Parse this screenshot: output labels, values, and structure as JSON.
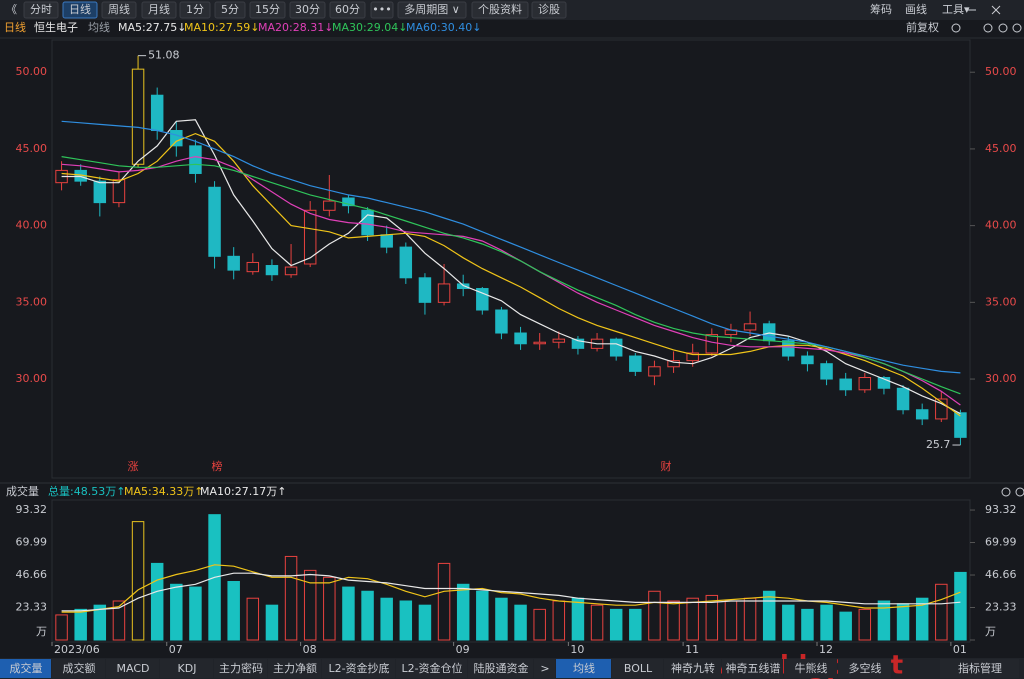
{
  "toolbar": {
    "back": "《",
    "periods": [
      "分时",
      "日线",
      "周线",
      "月线",
      "1分",
      "5分",
      "15分",
      "30分",
      "60分",
      "•••",
      "多周期图 ∨",
      "个股资料",
      "诊股"
    ],
    "tools": [
      "筹码",
      "画线",
      "工具▾"
    ]
  },
  "info": {
    "period": "日线",
    "stock": "恒生电子",
    "indicator": "均线",
    "adjust": "前复权"
  },
  "markers": [
    "涨",
    "榜",
    "财"
  ],
  "watermark": "www.ddgp.net",
  "tabs": [
    "成交量",
    "成交额",
    "MACD",
    "KDJ",
    "主力密码",
    "主力净额",
    "L2-资金抄底",
    "L2-资金仓位",
    "陆股通资金",
    ">",
    "均线",
    "BOLL",
    "神奇九转",
    "神奇五线谱",
    "牛熊线",
    "多空线",
    "指标管理"
  ],
  "chart_data": [
    {
      "type": "candlestick",
      "ylim": [
        23.55,
        52.1
      ],
      "yticks": [
        {
          "value": 30,
          "label": "30.00"
        },
        {
          "value": 35,
          "label": "35.00"
        },
        {
          "value": 40,
          "label": "40.00"
        },
        {
          "value": 45,
          "label": "45.00"
        },
        {
          "value": 50,
          "label": "50.00"
        }
      ],
      "up_color": "#e8423f",
      "down_color": "#1fb8c3",
      "limit_color": "#e8c21f",
      "open": [
        42.8,
        43.6,
        42.9,
        41.5,
        44.0,
        48.5,
        46.2,
        45.2,
        42.5,
        38.0,
        37.0,
        37.4,
        36.8,
        37.5,
        41.0,
        41.8,
        41.0,
        39.4,
        38.6,
        36.6,
        35.0,
        36.2,
        35.9,
        34.5,
        33.0,
        32.3,
        32.4,
        32.6,
        32.0,
        32.6,
        31.5,
        30.2,
        30.8,
        31.2,
        31.7,
        32.9,
        33.2,
        33.6,
        32.5,
        31.5,
        31.0,
        30.0,
        29.3,
        30.1,
        29.4,
        28.0,
        27.4,
        27.8
      ],
      "high": [
        44.2,
        44.0,
        43.2,
        43.5,
        51.08,
        49.0,
        46.8,
        45.6,
        42.9,
        38.6,
        38.2,
        37.8,
        38.8,
        41.6,
        43.3,
        42.0,
        41.2,
        40.0,
        38.9,
        36.9,
        37.5,
        36.8,
        36.0,
        34.7,
        33.4,
        33.0,
        33.1,
        32.8,
        33.0,
        32.7,
        31.7,
        31.2,
        31.8,
        32.3,
        33.3,
        33.6,
        34.4,
        33.8,
        32.8,
        31.8,
        31.2,
        30.4,
        30.4,
        30.2,
        29.6,
        28.4,
        29.2,
        28.0
      ],
      "low": [
        42.3,
        42.6,
        40.6,
        41.2,
        43.8,
        45.6,
        44.5,
        42.8,
        37.2,
        36.5,
        36.8,
        36.4,
        36.6,
        37.3,
        40.6,
        40.8,
        39.0,
        38.2,
        36.2,
        34.2,
        34.8,
        35.4,
        34.2,
        32.6,
        31.9,
        31.9,
        32.0,
        31.6,
        31.8,
        31.2,
        30.2,
        29.6,
        30.4,
        30.8,
        31.5,
        32.4,
        32.8,
        32.2,
        31.2,
        30.5,
        29.6,
        28.9,
        29.1,
        29.0,
        27.7,
        27.0,
        27.2,
        25.7
      ],
      "close": [
        43.6,
        42.9,
        41.5,
        43.0,
        50.2,
        46.2,
        45.2,
        43.4,
        38.0,
        37.1,
        37.6,
        36.8,
        37.3,
        41.0,
        41.6,
        41.3,
        39.4,
        38.6,
        36.6,
        35.0,
        36.2,
        35.9,
        34.5,
        33.0,
        32.3,
        32.4,
        32.6,
        32.0,
        32.6,
        31.5,
        30.5,
        30.8,
        31.2,
        31.7,
        32.9,
        33.2,
        33.6,
        32.5,
        31.5,
        31.0,
        30.0,
        29.3,
        30.1,
        29.4,
        28.0,
        27.4,
        28.7,
        26.2
      ],
      "series": [
        {
          "name": "MA5:27.75↓",
          "color": "#e8e8e8",
          "values": [
            43.2,
            43.2,
            42.8,
            42.8,
            44.2,
            45.2,
            46.8,
            46.9,
            44.6,
            42.0,
            40.3,
            38.5,
            37.4,
            37.9,
            38.8,
            39.5,
            40.7,
            40.5,
            39.5,
            38.2,
            37.2,
            36.1,
            35.6,
            35.1,
            34.2,
            33.6,
            33.0,
            32.5,
            32.3,
            32.3,
            31.8,
            31.5,
            31.1,
            31.0,
            31.4,
            32.0,
            32.7,
            33.0,
            32.8,
            32.4,
            31.8,
            31.0,
            30.5,
            30.0,
            29.5,
            28.9,
            28.4,
            27.75
          ]
        },
        {
          "name": "MA10:27.59↓",
          "color": "#f0c419",
          "values": [
            43.4,
            43.3,
            43.1,
            42.9,
            43.4,
            44.2,
            45.5,
            46.0,
            45.5,
            44.2,
            42.6,
            41.3,
            40.0,
            39.8,
            39.6,
            39.2,
            39.3,
            39.4,
            39.5,
            39.3,
            38.7,
            37.9,
            37.2,
            36.6,
            36.0,
            35.3,
            34.6,
            34.0,
            33.5,
            33.1,
            32.7,
            32.3,
            31.9,
            31.6,
            31.6,
            31.6,
            31.8,
            32.1,
            32.2,
            32.2,
            32.0,
            31.6,
            31.2,
            30.7,
            30.2,
            29.4,
            28.5,
            27.59
          ]
        },
        {
          "name": "MA20:28.31↓",
          "color": "#e040b8",
          "values": [
            44.0,
            43.9,
            43.7,
            43.5,
            43.6,
            43.8,
            44.2,
            44.5,
            44.3,
            43.8,
            43.0,
            42.2,
            41.4,
            40.8,
            40.4,
            40.2,
            40.1,
            39.9,
            39.6,
            39.5,
            39.4,
            39.3,
            39.0,
            38.4,
            37.7,
            37.0,
            36.3,
            35.6,
            35.0,
            34.5,
            34.0,
            33.5,
            33.1,
            32.7,
            32.4,
            32.2,
            32.1,
            32.1,
            32.1,
            32.0,
            31.9,
            31.7,
            31.4,
            31.0,
            30.5,
            29.9,
            29.2,
            28.31
          ]
        },
        {
          "name": "MA30:29.04↓",
          "color": "#2fc45a",
          "values": [
            44.5,
            44.3,
            44.1,
            43.9,
            43.8,
            43.8,
            43.9,
            44.0,
            43.9,
            43.6,
            43.2,
            42.8,
            42.4,
            42.0,
            41.7,
            41.4,
            41.1,
            40.7,
            40.3,
            39.9,
            39.5,
            39.2,
            38.8,
            38.3,
            37.7,
            37.0,
            36.4,
            35.8,
            35.3,
            34.8,
            34.2,
            33.7,
            33.3,
            33.0,
            32.8,
            32.7,
            32.6,
            32.5,
            32.4,
            32.3,
            32.1,
            31.8,
            31.4,
            31.0,
            30.5,
            30.0,
            29.5,
            29.04
          ]
        },
        {
          "name": "MA60:30.40↓",
          "color": "#2f8ee0",
          "values": [
            46.8,
            46.7,
            46.6,
            46.5,
            46.4,
            46.2,
            45.9,
            45.5,
            45.0,
            44.5,
            43.9,
            43.4,
            43.0,
            42.6,
            42.3,
            42.0,
            41.8,
            41.5,
            41.2,
            40.9,
            40.5,
            40.1,
            39.6,
            39.1,
            38.6,
            38.1,
            37.6,
            37.1,
            36.6,
            36.1,
            35.6,
            35.1,
            34.6,
            34.1,
            33.6,
            33.2,
            33.0,
            32.8,
            32.6,
            32.4,
            32.1,
            31.8,
            31.5,
            31.2,
            30.9,
            30.7,
            30.5,
            30.4
          ]
        }
      ]
    },
    {
      "type": "bar",
      "title": "成交量",
      "ylim": [
        0,
        103.4
      ],
      "yticks": [
        {
          "value": 0,
          "label": "万"
        },
        23.33,
        46.66,
        69.99,
        93.32
      ],
      "categories": [
        "2023/06",
        null,
        null,
        null,
        null,
        null,
        "07",
        null,
        null,
        null,
        null,
        null,
        null,
        "08",
        null,
        null,
        null,
        null,
        null,
        null,
        null,
        "09",
        null,
        null,
        null,
        null,
        null,
        "10",
        null,
        null,
        null,
        null,
        null,
        "11",
        null,
        null,
        null,
        null,
        null,
        null,
        "12",
        null,
        null,
        null,
        null,
        null,
        null,
        "01"
      ],
      "series": [
        {
          "name": "总量:48.53万↑",
          "color": "#19c1c1",
          "values": [
            18,
            22,
            25,
            28,
            85,
            55,
            40,
            38,
            90,
            42,
            30,
            25,
            60,
            50,
            45,
            38,
            35,
            30,
            28,
            25,
            55,
            40,
            35,
            30,
            25,
            22,
            28,
            30,
            25,
            22,
            22,
            35,
            28,
            30,
            32,
            28,
            30,
            35,
            25,
            22,
            25,
            20,
            22,
            28,
            26,
            30,
            40,
            48.53
          ]
        },
        {
          "name": "MA5:34.33万↑",
          "color": "#f0c419",
          "values": [
            20,
            20,
            22,
            24,
            36,
            43,
            47,
            50,
            54,
            53,
            49,
            45,
            45,
            41,
            41,
            45,
            44,
            40,
            35,
            31,
            35,
            36,
            37,
            34,
            33,
            30,
            28,
            27,
            26,
            25,
            25,
            27,
            26,
            27,
            28,
            29,
            30,
            31,
            30,
            28,
            27,
            25,
            23,
            23,
            24,
            25,
            29,
            34.33
          ]
        },
        {
          "name": "MA10:27.17万↑",
          "color": "#e8e8e8",
          "values": [
            21,
            21,
            22,
            23,
            30,
            35,
            38,
            40,
            45,
            48,
            48,
            46,
            46,
            47,
            46,
            43,
            42,
            41,
            39,
            37,
            37,
            37,
            36,
            35,
            34,
            33,
            32,
            30,
            29,
            28,
            27,
            27,
            27,
            27,
            27,
            28,
            28,
            28,
            28,
            28,
            28,
            27,
            26,
            26,
            26,
            26,
            26,
            27.17
          ]
        }
      ]
    }
  ]
}
